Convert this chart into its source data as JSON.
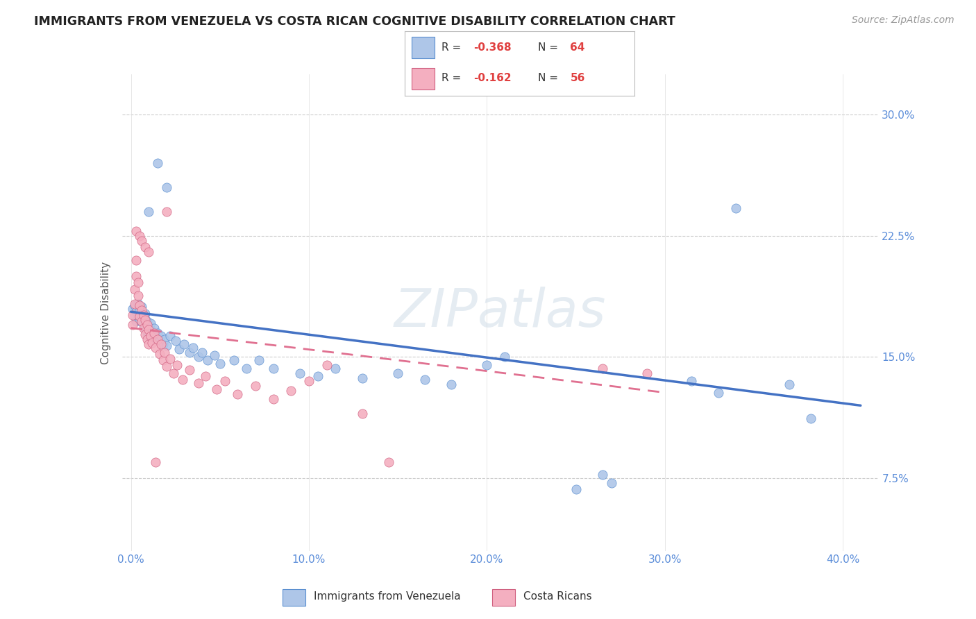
{
  "title": "IMMIGRANTS FROM VENEZUELA VS COSTA RICAN COGNITIVE DISABILITY CORRELATION CHART",
  "source": "Source: ZipAtlas.com",
  "ylabel": "Cognitive Disability",
  "ytick_labels": [
    "7.5%",
    "15.0%",
    "22.5%",
    "30.0%"
  ],
  "ytick_values": [
    0.075,
    0.15,
    0.225,
    0.3
  ],
  "xtick_values": [
    0.0,
    0.1,
    0.2,
    0.3,
    0.4
  ],
  "xlim": [
    -0.005,
    0.42
  ],
  "ylim": [
    0.03,
    0.325
  ],
  "legend_label1": "Immigrants from Venezuela",
  "legend_label2": "Costa Ricans",
  "r1": "-0.368",
  "n1": "64",
  "r2": "-0.162",
  "n2": "56",
  "color_blue": "#aec6e8",
  "color_pink": "#f4afc0",
  "color_blue_edge": "#5a8fd0",
  "color_pink_edge": "#d06080",
  "color_line_blue": "#4472c4",
  "color_line_pink": "#e07090",
  "watermark": "ZIPatlas",
  "blue_points": [
    [
      0.001,
      0.18
    ],
    [
      0.002,
      0.176
    ],
    [
      0.002,
      0.182
    ],
    [
      0.003,
      0.178
    ],
    [
      0.003,
      0.172
    ],
    [
      0.004,
      0.183
    ],
    [
      0.004,
      0.175
    ],
    [
      0.005,
      0.179
    ],
    [
      0.005,
      0.173
    ],
    [
      0.006,
      0.181
    ],
    [
      0.006,
      0.176
    ],
    [
      0.007,
      0.174
    ],
    [
      0.007,
      0.17
    ],
    [
      0.008,
      0.177
    ],
    [
      0.008,
      0.168
    ],
    [
      0.009,
      0.172
    ],
    [
      0.009,
      0.165
    ],
    [
      0.01,
      0.169
    ],
    [
      0.01,
      0.163
    ],
    [
      0.011,
      0.171
    ],
    [
      0.012,
      0.166
    ],
    [
      0.013,
      0.168
    ],
    [
      0.014,
      0.162
    ],
    [
      0.015,
      0.165
    ],
    [
      0.016,
      0.16
    ],
    [
      0.017,
      0.163
    ],
    [
      0.018,
      0.158
    ],
    [
      0.019,
      0.161
    ],
    [
      0.02,
      0.157
    ],
    [
      0.022,
      0.163
    ],
    [
      0.025,
      0.16
    ],
    [
      0.027,
      0.155
    ],
    [
      0.03,
      0.158
    ],
    [
      0.033,
      0.153
    ],
    [
      0.035,
      0.156
    ],
    [
      0.038,
      0.15
    ],
    [
      0.04,
      0.153
    ],
    [
      0.043,
      0.148
    ],
    [
      0.047,
      0.151
    ],
    [
      0.05,
      0.146
    ],
    [
      0.058,
      0.148
    ],
    [
      0.065,
      0.143
    ],
    [
      0.072,
      0.148
    ],
    [
      0.08,
      0.143
    ],
    [
      0.095,
      0.14
    ],
    [
      0.105,
      0.138
    ],
    [
      0.115,
      0.143
    ],
    [
      0.13,
      0.137
    ],
    [
      0.15,
      0.14
    ],
    [
      0.165,
      0.136
    ],
    [
      0.18,
      0.133
    ],
    [
      0.2,
      0.145
    ],
    [
      0.21,
      0.15
    ],
    [
      0.25,
      0.068
    ],
    [
      0.265,
      0.077
    ],
    [
      0.27,
      0.072
    ],
    [
      0.315,
      0.135
    ],
    [
      0.33,
      0.128
    ],
    [
      0.37,
      0.133
    ],
    [
      0.382,
      0.112
    ],
    [
      0.01,
      0.24
    ],
    [
      0.015,
      0.27
    ],
    [
      0.02,
      0.255
    ],
    [
      0.34,
      0.242
    ]
  ],
  "pink_points": [
    [
      0.001,
      0.176
    ],
    [
      0.001,
      0.17
    ],
    [
      0.002,
      0.192
    ],
    [
      0.002,
      0.183
    ],
    [
      0.003,
      0.21
    ],
    [
      0.003,
      0.2
    ],
    [
      0.004,
      0.196
    ],
    [
      0.004,
      0.188
    ],
    [
      0.005,
      0.182
    ],
    [
      0.005,
      0.175
    ],
    [
      0.006,
      0.179
    ],
    [
      0.006,
      0.172
    ],
    [
      0.007,
      0.176
    ],
    [
      0.007,
      0.168
    ],
    [
      0.008,
      0.173
    ],
    [
      0.008,
      0.164
    ],
    [
      0.009,
      0.17
    ],
    [
      0.009,
      0.161
    ],
    [
      0.01,
      0.167
    ],
    [
      0.01,
      0.158
    ],
    [
      0.011,
      0.163
    ],
    [
      0.012,
      0.159
    ],
    [
      0.013,
      0.165
    ],
    [
      0.014,
      0.156
    ],
    [
      0.015,
      0.161
    ],
    [
      0.016,
      0.152
    ],
    [
      0.017,
      0.158
    ],
    [
      0.018,
      0.148
    ],
    [
      0.019,
      0.153
    ],
    [
      0.02,
      0.144
    ],
    [
      0.022,
      0.149
    ],
    [
      0.024,
      0.14
    ],
    [
      0.026,
      0.145
    ],
    [
      0.029,
      0.136
    ],
    [
      0.033,
      0.142
    ],
    [
      0.038,
      0.134
    ],
    [
      0.042,
      0.138
    ],
    [
      0.048,
      0.13
    ],
    [
      0.053,
      0.135
    ],
    [
      0.06,
      0.127
    ],
    [
      0.07,
      0.132
    ],
    [
      0.08,
      0.124
    ],
    [
      0.09,
      0.129
    ],
    [
      0.003,
      0.228
    ],
    [
      0.005,
      0.225
    ],
    [
      0.006,
      0.222
    ],
    [
      0.008,
      0.218
    ],
    [
      0.01,
      0.215
    ],
    [
      0.014,
      0.085
    ],
    [
      0.13,
      0.115
    ],
    [
      0.145,
      0.085
    ],
    [
      0.265,
      0.143
    ],
    [
      0.29,
      0.14
    ],
    [
      0.02,
      0.24
    ],
    [
      0.1,
      0.135
    ],
    [
      0.11,
      0.145
    ]
  ]
}
